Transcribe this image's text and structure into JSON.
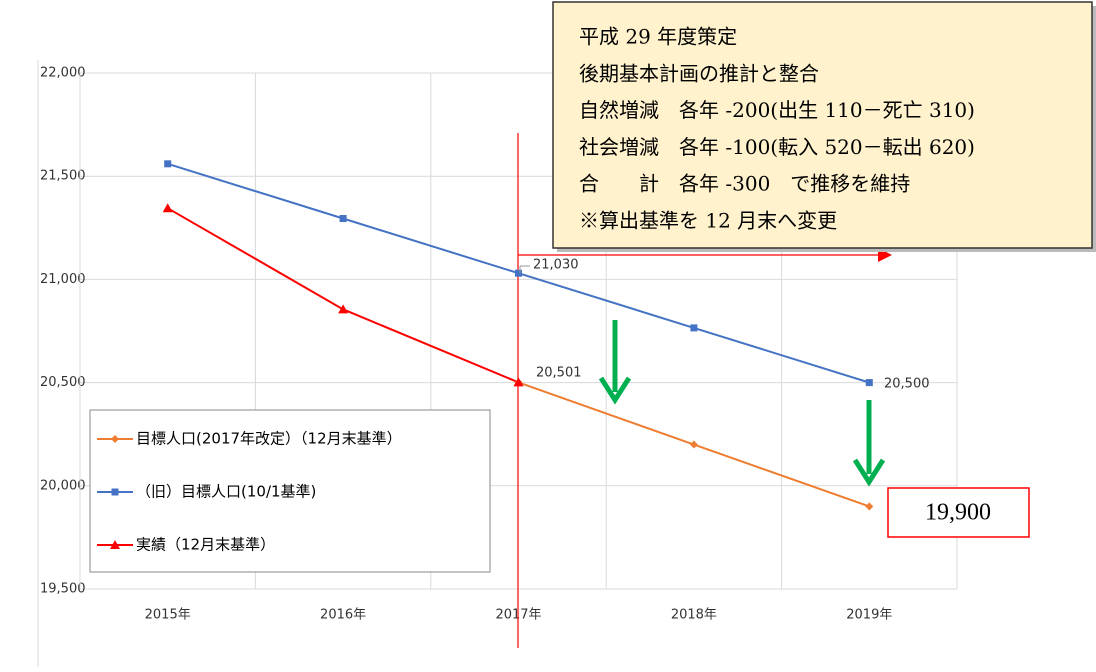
{
  "chart_data": {
    "type": "line",
    "categories": [
      "2015年",
      "2016年",
      "2017年",
      "2018年",
      "2019年"
    ],
    "series": [
      {
        "name": "目標人口(2017年改定）（12月末基準）",
        "color": "#ed7d31",
        "marker": "diamond",
        "values": [
          null,
          null,
          20501,
          20200,
          19900
        ],
        "value_labels": [
          null,
          null,
          "20,501",
          null,
          "19,900"
        ]
      },
      {
        "name": "（旧）目標人口(10/1基準)",
        "color": "#4472c4",
        "marker": "square",
        "values": [
          21560,
          21295,
          21030,
          20765,
          20500
        ],
        "value_labels": [
          null,
          null,
          "21,030",
          null,
          "20,500"
        ]
      },
      {
        "name": "実績（12月末基準）",
        "color": "#ff0000",
        "marker": "triangle",
        "values": [
          21345,
          20855,
          20501,
          null,
          null
        ]
      }
    ],
    "ylim": [
      19500,
      22000
    ],
    "yticks": [
      {
        "value": 19500,
        "label": "19,500"
      },
      {
        "value": 20000,
        "label": "20,000"
      },
      {
        "value": 20500,
        "label": "20,500"
      },
      {
        "value": 21000,
        "label": "21,000"
      },
      {
        "value": 21500,
        "label": "21,500"
      },
      {
        "value": 22000,
        "label": "22,000"
      }
    ],
    "grid": true,
    "legend": "lower-left",
    "annotation": [
      "平成 29 年度策定",
      "後期基本計画の推計と整合",
      "自然増減　各年 -200(出生 110－死亡 310)",
      "社会増減　各年 -100(転入 520－転出 620)",
      "合　　計　各年 -300　で推移を維持",
      "※算出基準を 12 月末へ変更"
    ]
  }
}
